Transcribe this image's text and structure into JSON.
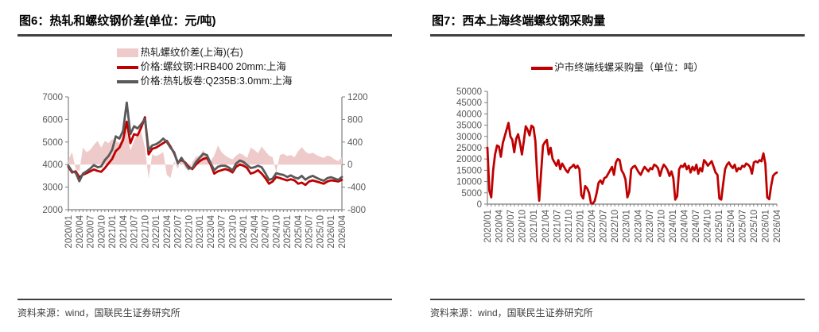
{
  "source_note": "资料来源：wind，国联民生证券研究所",
  "styles": {
    "rule_color": "#404040",
    "axis_color": "#808080",
    "tick_label_color": "#595959"
  },
  "chart_data": [
    {
      "type": "line",
      "title": "图6：热轧和螺纹钢价差(单位：元/吨)",
      "legend_position": "top",
      "grid": false,
      "x_months_total": 76,
      "x_tick_labels": [
        "2020/01",
        "2020/04",
        "2020/07",
        "2020/10",
        "2021/01",
        "2021/04",
        "2021/07",
        "2021/10",
        "2022/01",
        "2022/04",
        "2022/07",
        "2022/10",
        "2023/01",
        "2023/04",
        "2023/07",
        "2023/10",
        "2024/01",
        "2024/04",
        "2024/07",
        "2024/10",
        "2025/01",
        "2025/04",
        "2025/07",
        "2025/10",
        "2026/01",
        "2026/04"
      ],
      "left_axis": {
        "min": 2000,
        "max": 7000,
        "step": 1000
      },
      "right_axis": {
        "min": -800,
        "max": 1200,
        "step": 400
      },
      "series": [
        {
          "name": "热轧螺纹价差(上海)(右)",
          "type": "area",
          "axis": "right",
          "color": "#eecaca",
          "values": [
            80,
            220,
            -80,
            -120,
            300,
            220,
            260,
            350,
            420,
            300,
            420,
            380,
            450,
            420,
            380,
            520,
            600,
            250,
            420,
            560,
            580,
            300,
            -250,
            180,
            150,
            180,
            220,
            -180,
            -240,
            60,
            -80,
            120,
            -60,
            -120,
            40,
            140,
            160,
            260,
            120,
            60,
            160,
            340,
            220,
            160,
            120,
            90,
            160,
            200,
            170,
            120,
            300,
            260,
            200,
            320,
            240,
            160,
            130,
            -140,
            170,
            190,
            150,
            170,
            130,
            240,
            310,
            230,
            190,
            210,
            170,
            140,
            120,
            160,
            140,
            90,
            60,
            130
          ]
        },
        {
          "name": "价格:螺纹钢:HRB400 20mm:上海",
          "type": "line",
          "axis": "left",
          "color": "#c00000",
          "values": [
            3900,
            3650,
            3700,
            3430,
            3550,
            3620,
            3700,
            3780,
            3720,
            3680,
            3850,
            4050,
            4250,
            4600,
            4750,
            5100,
            5900,
            4950,
            5350,
            5300,
            5650,
            6100,
            4450,
            4700,
            4750,
            4850,
            4950,
            5050,
            4800,
            4500,
            4100,
            4200,
            4100,
            3900,
            3800,
            4000,
            4150,
            4250,
            4300,
            4000,
            3600,
            3700,
            3750,
            3800,
            3750,
            3650,
            3900,
            4000,
            3950,
            3850,
            3600,
            3650,
            3750,
            3600,
            3400,
            3150,
            3250,
            3450,
            3400,
            3350,
            3300,
            3350,
            3300,
            3150,
            3200,
            3100,
            3250,
            3300,
            3250,
            3200,
            3150,
            3250,
            3300,
            3280,
            3250,
            3320
          ]
        },
        {
          "name": "价格:热轧板卷:Q235B:3.0mm:上海",
          "type": "line",
          "axis": "left",
          "color": "#595959",
          "values": [
            3950,
            3700,
            3640,
            3260,
            3600,
            3700,
            3820,
            3980,
            3880,
            3920,
            4200,
            4380,
            4650,
            5250,
            5150,
            5500,
            6750,
            5350,
            5700,
            5600,
            5800,
            6020,
            4650,
            4850,
            4900,
            5000,
            5150,
            5000,
            4750,
            4550,
            4050,
            4300,
            4050,
            3820,
            3850,
            4120,
            4300,
            4480,
            4420,
            4060,
            3750,
            3900,
            3950,
            3950,
            3870,
            3740,
            4050,
            4180,
            4120,
            3980,
            3850,
            3880,
            3950,
            3880,
            3620,
            3320,
            3380,
            3620,
            3570,
            3540,
            3450,
            3520,
            3430,
            3380,
            3500,
            3330,
            3440,
            3500,
            3420,
            3340,
            3280,
            3400,
            3440,
            3380,
            3320,
            3450
          ]
        }
      ]
    },
    {
      "type": "line",
      "title": "图7：西本上海终端螺纹钢采购量",
      "legend_position": "top",
      "grid": false,
      "x_months_total": 76,
      "x_tick_labels": [
        "2020/01",
        "2020/04",
        "2020/07",
        "2020/10",
        "2021/01",
        "2021/04",
        "2021/07",
        "2021/10",
        "2022/01",
        "2022/04",
        "2022/07",
        "2022/10",
        "2023/01",
        "2023/04",
        "2023/07",
        "2023/10",
        "2024/01",
        "2024/04",
        "2024/07",
        "2024/10",
        "2025/01",
        "2025/04",
        "2025/07",
        "2025/10",
        "2026/01",
        "2026/04"
      ],
      "left_axis": {
        "min": 0,
        "max": 50000,
        "step": 5000
      },
      "series": [
        {
          "name": "沪市终端线螺采购量（单位：吨）",
          "type": "line",
          "axis": "left",
          "color": "#c00000",
          "points_per_month": 2,
          "values": [
            25000,
            6000,
            3000,
            15000,
            22000,
            26000,
            25500,
            21000,
            27000,
            30000,
            33000,
            36000,
            30000,
            28500,
            23000,
            29000,
            31000,
            27000,
            22000,
            28000,
            34500,
            33000,
            30500,
            34800,
            34000,
            28000,
            12000,
            1500,
            14000,
            26000,
            27500,
            28500,
            22000,
            25000,
            20000,
            18500,
            17000,
            19500,
            15500,
            18000,
            16500,
            15000,
            14000,
            16000,
            16500,
            17500,
            16000,
            17000,
            15500,
            4000,
            2500,
            8000,
            7000,
            5000,
            500,
            200,
            1500,
            5000,
            9500,
            10500,
            9000,
            11500,
            12000,
            13500,
            15000,
            16500,
            13000,
            18500,
            20000,
            19500,
            15000,
            13500,
            11000,
            3000,
            5500,
            15500,
            16500,
            17000,
            15500,
            14000,
            13000,
            15000,
            16500,
            15500,
            14500,
            16000,
            15500,
            17500,
            17000,
            16000,
            12500,
            15500,
            17500,
            16500,
            15000,
            12500,
            14500,
            11500,
            2000,
            3500,
            15500,
            17000,
            16500,
            18000,
            15500,
            17000,
            14000,
            16500,
            15000,
            17500,
            13500,
            16000,
            14500,
            19500,
            18500,
            17000,
            18000,
            19000,
            16500,
            14000,
            13000,
            2500,
            2000,
            9000,
            15500,
            17500,
            18500,
            17000,
            16000,
            17500,
            14500,
            16000,
            15500,
            17000,
            16500,
            18000,
            17500,
            16500,
            13500,
            18500,
            19000,
            18500,
            19500,
            19000,
            22500,
            18000,
            3000,
            2200,
            8000,
            12500,
            13500,
            14000
          ]
        }
      ]
    }
  ]
}
